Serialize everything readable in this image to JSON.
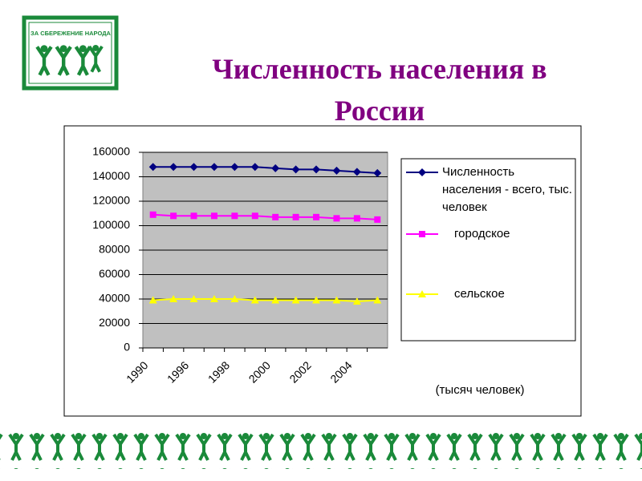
{
  "logo_text": "ЗА СБЕРЕЖЕНИЕ НАРОДА",
  "chart_data": {
    "type": "line",
    "title": "Численность населения в России",
    "categories": [
      "1990",
      null,
      "1996",
      null,
      "1998",
      null,
      "2000",
      null,
      "2002",
      null,
      "2004",
      null
    ],
    "series": [
      {
        "name": "Численность населения - всего, тыс. человек",
        "color": "#000080",
        "marker": "diamond",
        "values": [
          148000,
          148000,
          148000,
          148000,
          148000,
          148000,
          147000,
          146000,
          146000,
          145000,
          144000,
          143000
        ]
      },
      {
        "name": "городское",
        "color": "#ff00ff",
        "marker": "square",
        "values": [
          109000,
          108000,
          108000,
          108000,
          108000,
          108000,
          107000,
          107000,
          107000,
          106000,
          106000,
          105000
        ]
      },
      {
        "name": "сельское",
        "color": "#ffff00",
        "marker": "triangle",
        "values": [
          39000,
          40000,
          40000,
          40000,
          40000,
          39000,
          39000,
          39000,
          39000,
          39000,
          38000,
          39000
        ]
      }
    ],
    "ylim": [
      0,
      160000
    ],
    "yticks": [
      0,
      20000,
      40000,
      60000,
      80000,
      100000,
      120000,
      140000,
      160000
    ],
    "grid": true,
    "annotation": "(тысяч человек)"
  }
}
